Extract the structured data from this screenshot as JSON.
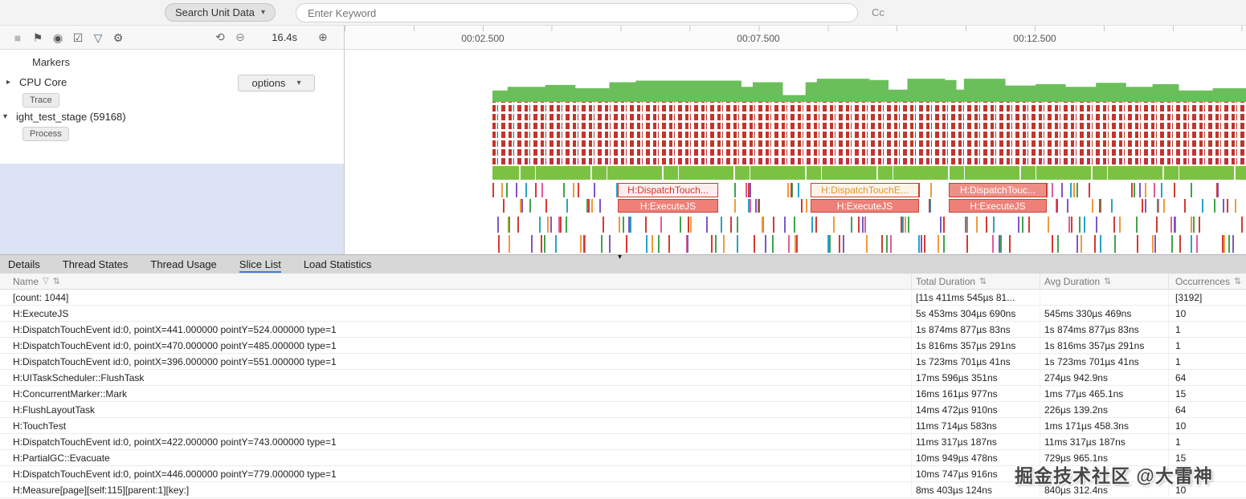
{
  "header": {
    "search_dropdown_label": "Search Unit Data",
    "search_placeholder": "Enter Keyword",
    "cc_label": "Cc"
  },
  "toolbar": {
    "duration": "16.4s"
  },
  "icons": {
    "stop": "■",
    "flag": "⚑",
    "target": "◉",
    "checklist": "☑",
    "filter": "▽",
    "gear": "⚙",
    "reset_zoom": "⟲",
    "zoom_out": "⊖",
    "zoom_in": "⊕",
    "dropdown_arrow": "▾",
    "expand_arrow": "▸",
    "collapse_arrow": "▾",
    "collapse_handle": "▾",
    "sort": "⇅",
    "header_filter": "▽"
  },
  "ruler": {
    "labels": [
      "00:02.500",
      "00:07.500",
      "00:12.500"
    ]
  },
  "left_panel": {
    "markers_label": "Markers",
    "cpu_core": {
      "label": "CPU Core",
      "badge": "Trace",
      "options_label": "options"
    },
    "process": {
      "label": "ight_test_stage (59168)",
      "badge": "Process"
    }
  },
  "timeline": {
    "slice_groups": [
      {
        "top": "H:DispatchTouch...",
        "bottom": "H:ExecuteJS"
      },
      {
        "top": "H:DispatchTouchE...",
        "bottom": "H:ExecuteJS"
      },
      {
        "top": "H:DispatchTouc...",
        "bottom": "H:ExecuteJS"
      }
    ]
  },
  "tabs": [
    {
      "label": "Details",
      "active": false
    },
    {
      "label": "Thread States",
      "active": false
    },
    {
      "label": "Thread Usage",
      "active": false
    },
    {
      "label": "Slice List",
      "active": true
    },
    {
      "label": "Load Statistics",
      "active": false
    }
  ],
  "table": {
    "columns": [
      "Name",
      "Total Duration",
      "Avg Duration",
      "Occurrences"
    ],
    "rows": [
      {
        "name": "[count: 1044]",
        "total": "[11s 411ms 545µs 81...",
        "avg": "",
        "occ": "[3192]"
      },
      {
        "name": "H:ExecuteJS",
        "total": "5s 453ms 304µs 690ns",
        "avg": "545ms 330µs 469ns",
        "occ": "10"
      },
      {
        "name": "H:DispatchTouchEvent id:0, pointX=441.000000 pointY=524.000000 type=1",
        "total": "1s 874ms 877µs 83ns",
        "avg": "1s 874ms 877µs 83ns",
        "occ": "1"
      },
      {
        "name": "H:DispatchTouchEvent id:0, pointX=470.000000 pointY=485.000000 type=1",
        "total": "1s 816ms 357µs 291ns",
        "avg": "1s 816ms 357µs 291ns",
        "occ": "1"
      },
      {
        "name": "H:DispatchTouchEvent id:0, pointX=396.000000 pointY=551.000000 type=1",
        "total": "1s 723ms 701µs 41ns",
        "avg": "1s 723ms 701µs 41ns",
        "occ": "1"
      },
      {
        "name": "H:UITaskScheduler::FlushTask",
        "total": "17ms 596µs 351ns",
        "avg": "274µs 942.9ns",
        "occ": "64"
      },
      {
        "name": "H:ConcurrentMarker::Mark",
        "total": "16ms 161µs 977ns",
        "avg": "1ms 77µs 465.1ns",
        "occ": "15"
      },
      {
        "name": "H:FlushLayoutTask",
        "total": "14ms 472µs 910ns",
        "avg": "226µs 139.2ns",
        "occ": "64"
      },
      {
        "name": "H:TouchTest",
        "total": "11ms 714µs 583ns",
        "avg": "1ms 171µs 458.3ns",
        "occ": "10"
      },
      {
        "name": "H:DispatchTouchEvent id:0, pointX=422.000000 pointY=743.000000 type=1",
        "total": "11ms 317µs 187ns",
        "avg": "11ms 317µs 187ns",
        "occ": "1"
      },
      {
        "name": "H:PartialGC::Evacuate",
        "total": "10ms 949µs 478ns",
        "avg": "729µs 965.1ns",
        "occ": "15"
      },
      {
        "name": "H:DispatchTouchEvent id:0, pointX=446.000000 pointY=779.000000 type=1",
        "total": "10ms 747µs 916ns",
        "avg": "",
        "occ": ""
      },
      {
        "name": "H:Measure[page][self:115][parent:1][key:]",
        "total": "8ms 403µs 124ns",
        "avg": "840µs 312.4ns",
        "occ": "10"
      }
    ]
  },
  "watermark": "掘金技术社区 @大雷神",
  "chart_data": {
    "type": "area",
    "title": "CPU usage over trace duration",
    "x_range_seconds": [
      0,
      16.4
    ],
    "cpu_profile": [
      [
        0,
        0.42
      ],
      [
        0.02,
        0.55
      ],
      [
        0.07,
        0.62
      ],
      [
        0.11,
        0.5
      ],
      [
        0.155,
        0.72
      ],
      [
        0.19,
        0.78
      ],
      [
        0.3,
        0.78
      ],
      [
        0.33,
        0.55
      ],
      [
        0.345,
        0.72
      ],
      [
        0.385,
        0.25
      ],
      [
        0.415,
        0.72
      ],
      [
        0.43,
        0.85
      ],
      [
        0.5,
        0.8
      ],
      [
        0.525,
        0.45
      ],
      [
        0.55,
        0.85
      ],
      [
        0.6,
        0.8
      ],
      [
        0.615,
        0.45
      ],
      [
        0.625,
        0.85
      ],
      [
        0.66,
        0.85
      ],
      [
        0.68,
        0.6
      ],
      [
        0.72,
        0.65
      ],
      [
        0.76,
        0.55
      ],
      [
        0.8,
        0.7
      ],
      [
        0.84,
        0.55
      ],
      [
        0.875,
        0.65
      ],
      [
        0.91,
        0.42
      ],
      [
        0.955,
        0.5
      ],
      [
        1,
        0.45
      ]
    ],
    "colors": {
      "cpu_area": "#6abf5a",
      "trace_marks": "#c2352b",
      "track_bar": "#7cc242",
      "accent_tab": "#3d7fd6"
    }
  }
}
